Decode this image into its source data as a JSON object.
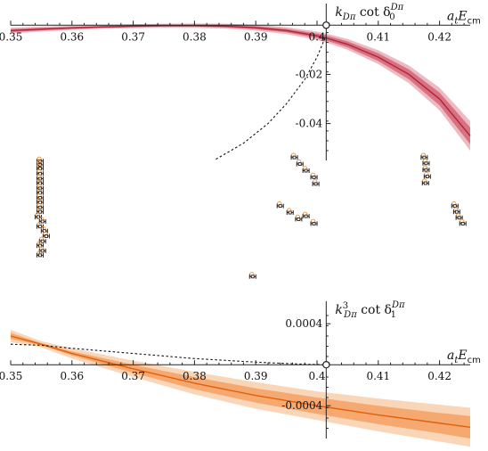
{
  "colors": {
    "s_wave": "#b0243a",
    "s_band_inner": "#d05a6c",
    "s_band_outer": "#e8a3ad",
    "p_wave": "#e0600a",
    "p_band_inner": "#f39a5a",
    "p_band_outer": "#f8c8a0",
    "dots": "#ee9a4a",
    "points": "#222222",
    "dashed": "#111111"
  },
  "chart_data": [
    {
      "type": "line",
      "title": "",
      "panel": "top",
      "xlabel_main": "a",
      "xlabel_sub": "t",
      "xlabel_tail": "E",
      "xlabel_tail_sub": "cm",
      "ylabel_main": "k",
      "ylabel_sub": "Dπ",
      "ylabel_mid": " cot δ",
      "ylabel_sub2": "0",
      "ylabel_sup2": "Dπ",
      "xlim": [
        0.35,
        0.425
      ],
      "ylim": [
        -0.055,
        0.003
      ],
      "yaxis_at_x": 0.4015,
      "xticks": [
        "0.35",
        "0.36",
        "0.37",
        "0.38",
        "0.39",
        "0.4",
        "0.41",
        "0.42"
      ],
      "xtick_values": [
        0.35,
        0.36,
        0.37,
        0.38,
        0.39,
        0.4,
        0.41,
        0.42
      ],
      "yticks": [
        "-0.02",
        "-0.04"
      ],
      "ytick_values": [
        -0.02,
        -0.04
      ],
      "series": [
        {
          "x": [
            0.35,
            0.355,
            0.36,
            0.365,
            0.37,
            0.375,
            0.38,
            0.385,
            0.39,
            0.395,
            0.4,
            0.4015,
            0.405,
            0.41,
            0.415,
            0.42,
            0.425
          ],
          "y": [
            -0.0022,
            -0.0016,
            -0.0011,
            -0.0007,
            -0.0004,
            -0.0002,
            -0.0002,
            -0.0004,
            -0.001,
            -0.0022,
            -0.0043,
            -0.0052,
            -0.0078,
            -0.013,
            -0.02,
            -0.03,
            -0.045
          ],
          "band_inner": [
            0.0006,
            0.0005,
            0.0004,
            0.0004,
            0.0004,
            0.0004,
            0.0004,
            0.0005,
            0.0006,
            0.0007,
            0.0009,
            0.001,
            0.0012,
            0.0016,
            0.002,
            0.0026,
            0.0034
          ],
          "band_outer": [
            0.0012,
            0.001,
            0.0009,
            0.0008,
            0.0008,
            0.0008,
            0.0009,
            0.001,
            0.0012,
            0.0014,
            0.0017,
            0.0018,
            0.0022,
            0.0028,
            0.0036,
            0.0046,
            0.006
          ]
        }
      ],
      "dashed_curve": {
        "x": [
          0.3835,
          0.388,
          0.392,
          0.395,
          0.398,
          0.4,
          0.4015
        ],
        "y": [
          -0.0545,
          -0.048,
          -0.04,
          -0.032,
          -0.022,
          -0.013,
          -0.004
        ]
      },
      "open_circle": {
        "x": 0.4015,
        "y": 0.0
      }
    },
    {
      "type": "scatter",
      "title": "",
      "panel": "middle",
      "xlim": [
        0.35,
        0.425
      ],
      "ylim": [
        0.0,
        1.0
      ],
      "points": [
        {
          "x": 0.3548,
          "y": 0.965
        },
        {
          "x": 0.3548,
          "y": 0.94
        },
        {
          "x": 0.3548,
          "y": 0.915
        },
        {
          "x": 0.3548,
          "y": 0.88
        },
        {
          "x": 0.3548,
          "y": 0.845
        },
        {
          "x": 0.3548,
          "y": 0.815
        },
        {
          "x": 0.3548,
          "y": 0.78
        },
        {
          "x": 0.3548,
          "y": 0.75
        },
        {
          "x": 0.3548,
          "y": 0.715
        },
        {
          "x": 0.3548,
          "y": 0.685
        },
        {
          "x": 0.3548,
          "y": 0.65
        },
        {
          "x": 0.3548,
          "y": 0.62
        },
        {
          "x": 0.3545,
          "y": 0.585
        },
        {
          "x": 0.3552,
          "y": 0.555
        },
        {
          "x": 0.3548,
          "y": 0.52
        },
        {
          "x": 0.3555,
          "y": 0.49
        },
        {
          "x": 0.3558,
          "y": 0.455
        },
        {
          "x": 0.3552,
          "y": 0.42
        },
        {
          "x": 0.3548,
          "y": 0.39
        },
        {
          "x": 0.3552,
          "y": 0.355
        },
        {
          "x": 0.3548,
          "y": 0.325
        },
        {
          "x": 0.3963,
          "y": 0.99
        },
        {
          "x": 0.3972,
          "y": 0.945
        },
        {
          "x": 0.3982,
          "y": 0.9
        },
        {
          "x": 0.3995,
          "y": 0.855
        },
        {
          "x": 0.3998,
          "y": 0.81
        },
        {
          "x": 0.394,
          "y": 0.66
        },
        {
          "x": 0.3956,
          "y": 0.615
        },
        {
          "x": 0.397,
          "y": 0.57
        },
        {
          "x": 0.3982,
          "y": 0.59
        },
        {
          "x": 0.3995,
          "y": 0.54
        },
        {
          "x": 0.3895,
          "y": 0.18
        },
        {
          "x": 0.4175,
          "y": 0.99
        },
        {
          "x": 0.4178,
          "y": 0.95
        },
        {
          "x": 0.4178,
          "y": 0.905
        },
        {
          "x": 0.418,
          "y": 0.86
        },
        {
          "x": 0.4177,
          "y": 0.815
        },
        {
          "x": 0.4225,
          "y": 0.66
        },
        {
          "x": 0.4228,
          "y": 0.62
        },
        {
          "x": 0.4232,
          "y": 0.58
        },
        {
          "x": 0.4238,
          "y": 0.54
        }
      ]
    },
    {
      "type": "line",
      "title": "",
      "panel": "bottom",
      "xlabel_main": "a",
      "xlabel_sub": "t",
      "xlabel_tail": "E",
      "xlabel_tail_sub": "cm",
      "ylabel_main": "k",
      "ylabel_sub": "Dπ",
      "ylabel_sup": "3",
      "ylabel_mid": " cot δ",
      "ylabel_sub2": "1",
      "ylabel_sup2": "Dπ",
      "xlim": [
        0.35,
        0.425
      ],
      "ylim": [
        -0.00072,
        0.00048
      ],
      "yaxis_at_x": 0.4015,
      "xticks": [
        "0.35",
        "0.36",
        "0.37",
        "0.38",
        "0.39",
        "0.4",
        "0.41",
        "0.42"
      ],
      "xtick_values": [
        0.35,
        0.36,
        0.37,
        0.38,
        0.39,
        0.4,
        0.41,
        0.42
      ],
      "yticks": [
        "0.0004",
        "-0.0004"
      ],
      "ytick_values": [
        0.0004,
        -0.0004
      ],
      "series": [
        {
          "x": [
            0.35,
            0.355,
            0.36,
            0.37,
            0.38,
            0.39,
            0.4,
            0.41,
            0.42,
            0.425
          ],
          "y": [
            0.00028,
            0.0002,
            0.00011,
            -4e-05,
            -0.00018,
            -0.0003,
            -0.0004,
            -0.00049,
            -0.00057,
            -0.00061
          ],
          "band_inner": [
            3e-05,
            1e-05,
            2e-05,
            4e-05,
            6e-05,
            7e-05,
            8e-05,
            9e-05,
            0.0001,
            0.00011
          ],
          "band_outer": [
            6e-05,
            3e-05,
            5e-05,
            8e-05,
            0.00011,
            0.00013,
            0.00014,
            0.00016,
            0.00018,
            0.00019
          ]
        }
      ],
      "dashed_curve": {
        "x": [
          0.35,
          0.355,
          0.36,
          0.37,
          0.38,
          0.39,
          0.395,
          0.3985,
          0.4015
        ],
        "y": [
          0.0002,
          0.00019,
          0.00016,
          0.00011,
          6e-05,
          2.5e-05,
          1.2e-05,
          4e-06,
          0.0
        ],
        "y_note": ""
      },
      "open_circle": {
        "x": 0.4015,
        "y": 0.0
      }
    }
  ]
}
